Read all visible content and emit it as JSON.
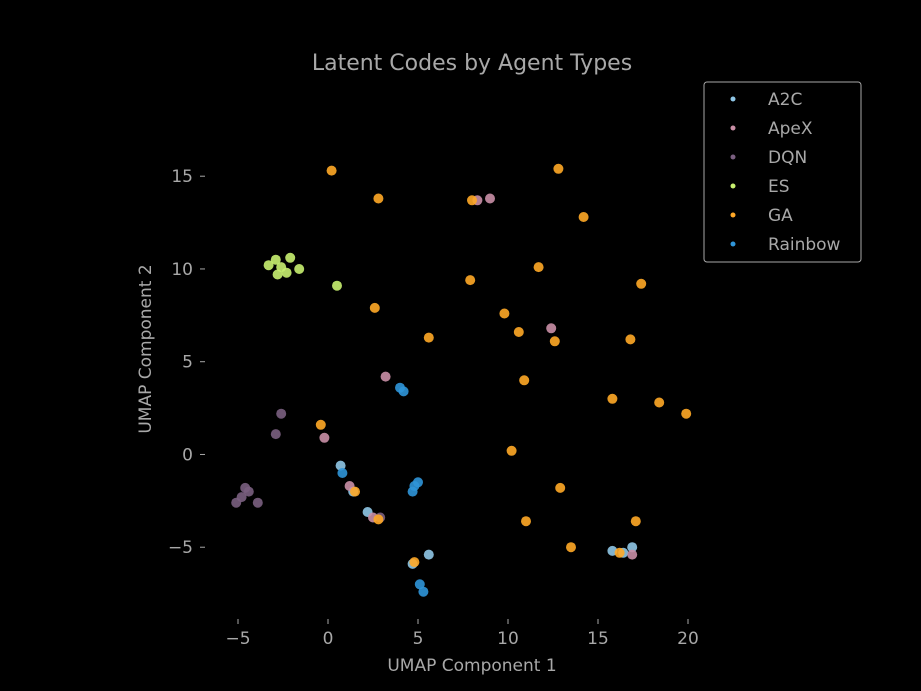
{
  "chart_data": {
    "type": "scatter",
    "title": "Latent Codes by Agent Types",
    "xlabel": "UMAP Component 1",
    "ylabel": "UMAP Component 2",
    "xlim": [
      -7.0,
      22.0
    ],
    "ylim": [
      -8.6,
      19.0
    ],
    "xticks": [
      -5,
      0,
      5,
      10,
      15,
      20
    ],
    "xtick_labels": [
      "−5",
      "0",
      "5",
      "10",
      "15",
      "20"
    ],
    "yticks": [
      -5,
      0,
      5,
      10,
      15
    ],
    "ytick_labels": [
      "−5",
      "0",
      "5",
      "10",
      "15"
    ],
    "grid": false,
    "legend_position": "top-right",
    "colors": {
      "background": "#000000",
      "text": "#a8a8a8",
      "A2C": "#8fc6e6",
      "ApeX": "#c98fa6",
      "DQN": "#7a5f80",
      "ES": "#c8f070",
      "GA": "#ffa826",
      "Rainbow": "#2f95d8"
    },
    "series": [
      {
        "name": "A2C",
        "points": [
          [
            15.8,
            -5.2
          ],
          [
            16.4,
            -5.3
          ],
          [
            16.9,
            -5.0
          ],
          [
            1.4,
            -2.0
          ],
          [
            2.2,
            -3.1
          ],
          [
            5.6,
            -5.4
          ],
          [
            4.7,
            -5.9
          ],
          [
            0.7,
            -0.6
          ]
        ]
      },
      {
        "name": "ApeX",
        "points": [
          [
            8.3,
            13.7
          ],
          [
            9.0,
            13.8
          ],
          [
            3.2,
            4.2
          ],
          [
            12.4,
            6.8
          ],
          [
            -0.2,
            0.9
          ],
          [
            1.2,
            -1.7
          ],
          [
            2.5,
            -3.4
          ],
          [
            16.9,
            -5.4
          ]
        ]
      },
      {
        "name": "DQN",
        "points": [
          [
            -4.8,
            -2.3
          ],
          [
            -4.4,
            -2.0
          ],
          [
            -5.1,
            -2.6
          ],
          [
            -4.6,
            -1.8
          ],
          [
            -3.9,
            -2.6
          ],
          [
            -2.9,
            1.1
          ],
          [
            -2.6,
            2.2
          ],
          [
            2.9,
            -3.4
          ]
        ]
      },
      {
        "name": "ES",
        "points": [
          [
            -2.6,
            10.1
          ],
          [
            -2.9,
            10.5
          ],
          [
            -2.3,
            9.8
          ],
          [
            -2.8,
            9.7
          ],
          [
            -3.3,
            10.2
          ],
          [
            -2.1,
            10.6
          ],
          [
            -1.6,
            10.0
          ],
          [
            0.5,
            9.1
          ]
        ]
      },
      {
        "name": "GA",
        "points": [
          [
            0.2,
            15.3
          ],
          [
            2.8,
            13.8
          ],
          [
            8.0,
            13.7
          ],
          [
            12.8,
            15.4
          ],
          [
            14.2,
            12.8
          ],
          [
            17.4,
            9.2
          ],
          [
            16.8,
            6.2
          ],
          [
            15.8,
            3.0
          ],
          [
            18.4,
            2.8
          ],
          [
            19.9,
            2.2
          ],
          [
            17.1,
            -3.6
          ],
          [
            16.2,
            -5.3
          ],
          [
            13.5,
            -5.0
          ],
          [
            12.9,
            -1.8
          ],
          [
            11.0,
            -3.6
          ],
          [
            10.2,
            0.2
          ],
          [
            10.9,
            4.0
          ],
          [
            12.6,
            6.1
          ],
          [
            10.6,
            6.6
          ],
          [
            9.8,
            7.6
          ],
          [
            11.7,
            10.1
          ],
          [
            7.9,
            9.4
          ],
          [
            2.6,
            7.9
          ],
          [
            5.6,
            6.3
          ],
          [
            -0.4,
            1.6
          ],
          [
            1.5,
            -2.0
          ],
          [
            2.8,
            -3.5
          ],
          [
            4.8,
            -5.8
          ]
        ]
      },
      {
        "name": "Rainbow",
        "points": [
          [
            4.0,
            3.6
          ],
          [
            4.2,
            3.4
          ],
          [
            4.8,
            -1.7
          ],
          [
            4.7,
            -2.0
          ],
          [
            5.0,
            -1.5
          ],
          [
            5.1,
            -7.0
          ],
          [
            5.3,
            -7.4
          ],
          [
            0.8,
            -1.0
          ]
        ]
      }
    ]
  }
}
